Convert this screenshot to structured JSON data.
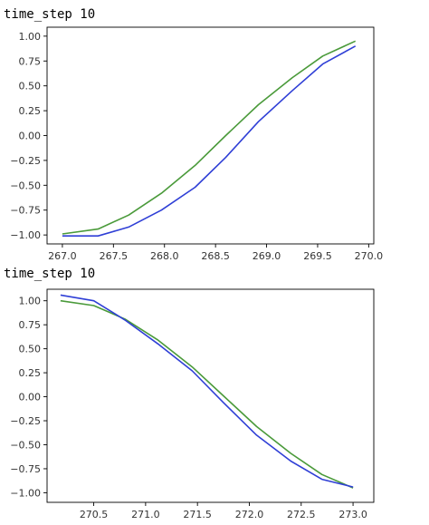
{
  "captions": [
    "time_step 10",
    "time_step 10"
  ],
  "colors": {
    "series_green": "#4a9a3a",
    "series_blue": "#2f3fd6",
    "axis": "#000000"
  },
  "chart_data": [
    {
      "type": "line",
      "title": "",
      "xlabel": "",
      "ylabel": "",
      "xlim": [
        266.85,
        270.05
      ],
      "ylim": [
        -1.09,
        1.09
      ],
      "xticks": [
        267.0,
        267.5,
        268.0,
        268.5,
        269.0,
        269.5,
        270.0
      ],
      "xtick_labels": [
        "267.0",
        "267.5",
        "268.0",
        "268.5",
        "269.0",
        "269.5",
        "270.0"
      ],
      "yticks": [
        1.0,
        0.75,
        0.5,
        0.25,
        0.0,
        -0.25,
        -0.5,
        -0.75,
        -1.0
      ],
      "ytick_labels": [
        "1.00",
        "0.75",
        "0.50",
        "0.25",
        "0.00",
        "−0.25",
        "−0.50",
        "−0.75",
        "−1.00"
      ],
      "grid": false,
      "series": [
        {
          "color": "#4a9a3a",
          "x": [
            267.0,
            267.35,
            267.65,
            267.97,
            268.3,
            268.6,
            268.92,
            269.25,
            269.55,
            269.87
          ],
          "y": [
            -0.99,
            -0.94,
            -0.8,
            -0.58,
            -0.3,
            0.0,
            0.31,
            0.58,
            0.8,
            0.95
          ]
        },
        {
          "color": "#2f3fd6",
          "x": [
            267.0,
            267.35,
            267.65,
            267.97,
            268.3,
            268.6,
            268.92,
            269.25,
            269.55,
            269.87
          ],
          "y": [
            -1.01,
            -1.01,
            -0.92,
            -0.75,
            -0.52,
            -0.22,
            0.14,
            0.45,
            0.72,
            0.9
          ]
        }
      ]
    },
    {
      "type": "line",
      "title": "",
      "xlabel": "",
      "ylabel": "",
      "xlim": [
        270.05,
        273.2
      ],
      "ylim": [
        -1.1,
        1.12
      ],
      "xticks": [
        270.5,
        271.0,
        271.5,
        272.0,
        272.5,
        273.0
      ],
      "xtick_labels": [
        "270.5",
        "271.0",
        "271.5",
        "272.0",
        "272.5",
        "273.0"
      ],
      "yticks": [
        1.0,
        0.75,
        0.5,
        0.25,
        0.0,
        -0.25,
        -0.5,
        -0.75,
        -1.0
      ],
      "ytick_labels": [
        "1.00",
        "0.75",
        "0.50",
        "0.25",
        "0.00",
        "−0.25",
        "−0.50",
        "−0.75",
        "−1.00"
      ],
      "grid": false,
      "series": [
        {
          "color": "#4a9a3a",
          "x": [
            270.18,
            270.5,
            270.8,
            271.12,
            271.45,
            271.75,
            272.07,
            272.4,
            272.7,
            273.0
          ],
          "y": [
            1.0,
            0.95,
            0.81,
            0.59,
            0.31,
            0.01,
            -0.31,
            -0.59,
            -0.81,
            -0.95
          ]
        },
        {
          "color": "#2f3fd6",
          "x": [
            270.18,
            270.5,
            270.8,
            271.12,
            271.45,
            271.75,
            272.07,
            272.4,
            272.7,
            273.0
          ],
          "y": [
            1.06,
            1.0,
            0.8,
            0.55,
            0.27,
            -0.06,
            -0.4,
            -0.67,
            -0.86,
            -0.94
          ]
        }
      ]
    }
  ]
}
